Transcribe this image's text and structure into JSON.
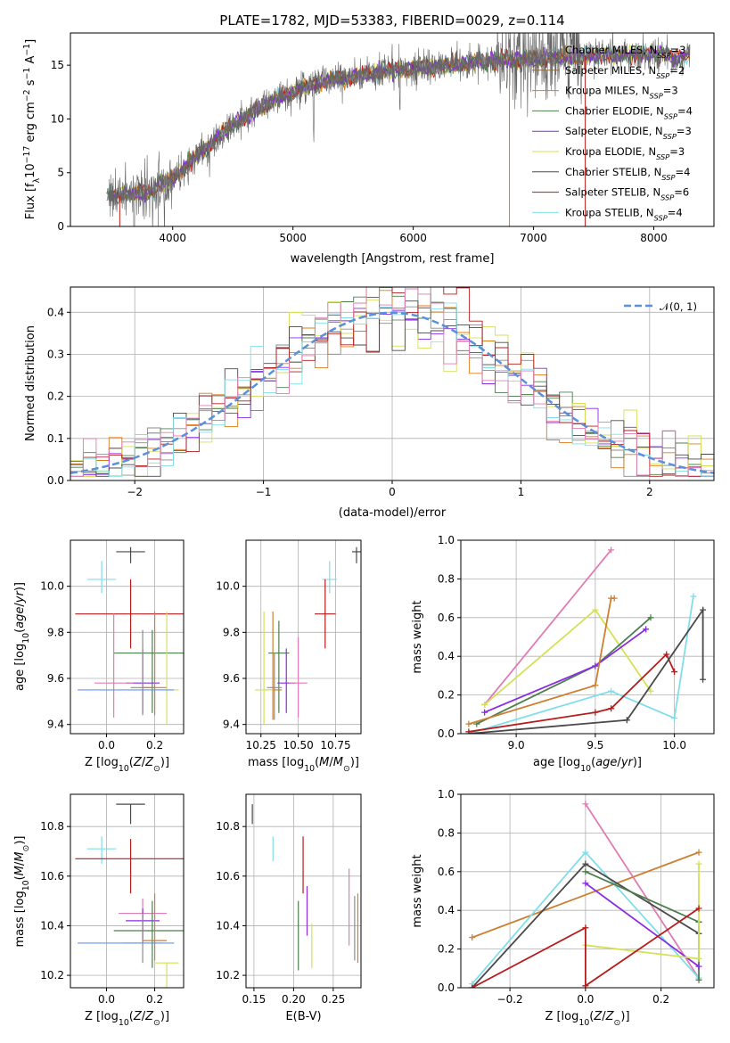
{
  "title": "PLATE=1782, MJD=53383, FIBERID=0029, z=0.114",
  "colors": {
    "chabrier_miles": "#8c8c8c",
    "salpeter_miles": "#8b6a3a",
    "kroupa_miles": "#e07b1a",
    "chabrier_elodie": "#4d7f4d",
    "salpeter_elodie": "#8a2be2",
    "kroupa_elodie": "#d4e157",
    "chabrier_stelib": "#4a4a4a",
    "salpeter_stelib": "#b71c1c",
    "kroupa_stelib": "#80deea",
    "gauss": "#5b8fd9",
    "pink": "#e07cb4",
    "blue": "#6495ed",
    "orange": "#cd7f32"
  },
  "chart_data": [
    {
      "id": "spectrum",
      "type": "line",
      "xlabel": "wavelength [Angstrom, rest frame]",
      "ylabel": "Flux [f",
      "xlim": [
        3150,
        8500
      ],
      "ylim": [
        0,
        18
      ],
      "xticks": [
        "4000",
        "5000",
        "6000",
        "7000",
        "8000"
      ],
      "yticks": [
        "0",
        "5",
        "10",
        "15"
      ],
      "continuum": {
        "x": [
          3500,
          3800,
          4000,
          4300,
          4500,
          4800,
          5000,
          5200,
          5500,
          5800,
          6000,
          6300,
          6600,
          7000,
          7500,
          8000,
          8200
        ],
        "y": [
          2.8,
          3.2,
          4.5,
          7.5,
          9.5,
          11.5,
          12.5,
          13.3,
          14.0,
          14.5,
          14.7,
          15.0,
          15.3,
          15.6,
          15.9,
          16.0,
          15.8
        ]
      },
      "legend": [
        {
          "label": "Chabrier MILES, N",
          "sub": "SSP",
          "rest": "=3",
          "color": "#8c8c8c"
        },
        {
          "label": "Salpeter MILES, N",
          "sub": "SSP",
          "rest": "=2",
          "color": "#8b6a3a"
        },
        {
          "label": "Kroupa MILES, N",
          "sub": "SSP",
          "rest": "=3",
          "color": "#e07b1a"
        },
        {
          "label": "Chabrier ELODIE, N",
          "sub": "SSP",
          "rest": "=4",
          "color": "#4d7f4d"
        },
        {
          "label": "Salpeter ELODIE, N",
          "sub": "SSP",
          "rest": "=3",
          "color": "#8a2be2"
        },
        {
          "label": "Kroupa ELODIE, N",
          "sub": "SSP",
          "rest": "=3",
          "color": "#d4e157"
        },
        {
          "label": "Chabrier STELIB, N",
          "sub": "SSP",
          "rest": "=4",
          "color": "#4a4a4a"
        },
        {
          "label": "Salpeter STELIB, N",
          "sub": "SSP",
          "rest": "=6",
          "color": "#b71c1c"
        },
        {
          "label": "Kroupa STELIB, N",
          "sub": "SSP",
          "rest": "=4",
          "color": "#80deea"
        }
      ]
    },
    {
      "id": "residuals",
      "type": "line",
      "xlabel": "(data-model)/error",
      "ylabel": "Normed distribution",
      "xlim": [
        -2.5,
        2.5
      ],
      "ylim": [
        0,
        0.46
      ],
      "xticks": [
        "−2",
        "−1",
        "0",
        "1",
        "2"
      ],
      "yticks": [
        "0.0",
        "0.1",
        "0.2",
        "0.3",
        "0.4"
      ],
      "legend": "𝒩(0, 1)"
    },
    {
      "id": "age_vs_z",
      "type": "scatter",
      "xlabel": "Z [log",
      "ylabel": "age  [log",
      "xlim": [
        -0.15,
        0.32
      ],
      "ylim": [
        9.36,
        10.2
      ],
      "xticks": [
        "0.0",
        "0.2"
      ],
      "yticks": [
        "9.4",
        "9.6",
        "9.8",
        "10.0"
      ],
      "points": [
        {
          "x": 0.1,
          "y": 10.15,
          "xe": 0.06,
          "yel": 0.05,
          "yeh": 0.02,
          "c": "#4a4a4a"
        },
        {
          "x": -0.02,
          "y": 10.03,
          "xe": 0.06,
          "yel": 0.06,
          "yeh": 0.08,
          "c": "#80deea"
        },
        {
          "x": 0.1,
          "y": 9.88,
          "xe": 0.23,
          "yel": 0.15,
          "yeh": 0.15,
          "c": "#b71c1c"
        },
        {
          "x": 0.19,
          "y": 9.71,
          "xe": 0.16,
          "yel": 0.26,
          "yeh": 0.1,
          "c": "#4d7f4d"
        },
        {
          "x": 0.15,
          "y": 9.58,
          "xe": 0.07,
          "yel": 0.13,
          "yeh": 0.15,
          "c": "#8a2be2"
        },
        {
          "x": 0.03,
          "y": 9.58,
          "xe": 0.08,
          "yel": 0.15,
          "yeh": 0.3,
          "c": "#e07cb4"
        },
        {
          "x": 0.15,
          "y": 9.56,
          "xe": 0.05,
          "yel": 0.12,
          "yeh": 0.25,
          "c": "#8c8c8c"
        },
        {
          "x": 0.2,
          "y": 9.56,
          "xe": 0.05,
          "yel": 0.12,
          "yeh": 0.33,
          "c": "#cd7f32"
        },
        {
          "x": 0.25,
          "y": 9.55,
          "xe": 0.05,
          "yel": 0.15,
          "yeh": 0.34,
          "c": "#d4e157"
        },
        {
          "x": 0.08,
          "y": 9.55,
          "xe": 0.2,
          "yel": 0.0,
          "yeh": 0.0,
          "c": "#6495ed"
        }
      ]
    },
    {
      "id": "age_vs_mass",
      "type": "scatter",
      "xlabel": "mass [log",
      "ylabel": "",
      "xlim": [
        10.15,
        10.92
      ],
      "ylim": [
        9.36,
        10.2
      ],
      "xticks": [
        "10.25",
        "10.50",
        "10.75"
      ],
      "yticks": [
        "9.4",
        "9.6",
        "9.8",
        "10.0"
      ],
      "points": [
        {
          "x": 10.89,
          "y": 10.15,
          "xe": 0.03,
          "yel": 0.05,
          "yeh": 0.02,
          "c": "#4a4a4a"
        },
        {
          "x": 10.71,
          "y": 10.03,
          "xe": 0.05,
          "yel": 0.06,
          "yeh": 0.08,
          "c": "#80deea"
        },
        {
          "x": 10.68,
          "y": 9.88,
          "xe": 0.07,
          "yel": 0.15,
          "yeh": 0.15,
          "c": "#b71c1c"
        },
        {
          "x": 10.37,
          "y": 9.71,
          "xe": 0.07,
          "yel": 0.26,
          "yeh": 0.14,
          "c": "#4d7f4d"
        },
        {
          "x": 10.42,
          "y": 9.58,
          "xe": 0.06,
          "yel": 0.13,
          "yeh": 0.15,
          "c": "#8a2be2"
        },
        {
          "x": 10.5,
          "y": 9.58,
          "xe": 0.06,
          "yel": 0.15,
          "yeh": 0.2,
          "c": "#e07cb4"
        },
        {
          "x": 10.34,
          "y": 9.56,
          "xe": 0.05,
          "yel": 0.14,
          "yeh": 0.15,
          "c": "#8c8c8c"
        },
        {
          "x": 10.33,
          "y": 9.55,
          "xe": 0.06,
          "yel": 0.13,
          "yeh": 0.34,
          "c": "#cd7f32"
        },
        {
          "x": 10.27,
          "y": 9.55,
          "xe": 0.06,
          "yel": 0.15,
          "yeh": 0.34,
          "c": "#d4e157"
        }
      ]
    },
    {
      "id": "weight_vs_age",
      "type": "line",
      "xlabel": "age  [log",
      "ylabel": "mass weight",
      "xlim": [
        8.65,
        10.25
      ],
      "ylim": [
        0,
        1
      ],
      "xticks": [
        "9.0",
        "9.5",
        "10.0"
      ],
      "yticks": [
        "0.0",
        "0.2",
        "0.4",
        "0.6",
        "0.8",
        "1.0"
      ],
      "series": [
        {
          "c": "#e07cb4",
          "x": [
            8.8,
            9.6
          ],
          "y": [
            0.15,
            0.95
          ]
        },
        {
          "c": "#d4e157",
          "x": [
            8.8,
            9.5,
            9.85
          ],
          "y": [
            0.15,
            0.64,
            0.22
          ]
        },
        {
          "c": "#4d7f4d",
          "x": [
            8.75,
            9.5,
            9.85
          ],
          "y": [
            0.05,
            0.35,
            0.6
          ]
        },
        {
          "c": "#8a2be2",
          "x": [
            8.8,
            9.5,
            9.82
          ],
          "y": [
            0.11,
            0.35,
            0.54
          ]
        },
        {
          "c": "#cd7f32",
          "x": [
            8.7,
            9.5,
            9.6,
            9.62
          ],
          "y": [
            0.05,
            0.25,
            0.7,
            0.7
          ]
        },
        {
          "c": "#80deea",
          "x": [
            8.7,
            9.6,
            10.0,
            10.12
          ],
          "y": [
            0.0,
            0.22,
            0.08,
            0.71
          ]
        },
        {
          "c": "#b71c1c",
          "x": [
            8.7,
            9.5,
            9.6,
            9.95,
            10.0
          ],
          "y": [
            0.01,
            0.11,
            0.13,
            0.41,
            0.32
          ]
        },
        {
          "c": "#4a4a4a",
          "x": [
            8.7,
            9.7,
            10.18,
            10.18
          ],
          "y": [
            0.0,
            0.07,
            0.64,
            0.28
          ]
        }
      ]
    },
    {
      "id": "mass_vs_z",
      "type": "scatter",
      "xlabel": "Z [log",
      "ylabel": "mass [log",
      "xlim": [
        -0.15,
        0.32
      ],
      "ylim": [
        10.15,
        10.93
      ],
      "xticks": [
        "0.0",
        "0.2"
      ],
      "yticks": [
        "10.2",
        "10.4",
        "10.6",
        "10.8"
      ],
      "points": [
        {
          "x": 0.1,
          "y": 10.89,
          "xe": 0.06,
          "yel": 0.08,
          "yeh": 0.0,
          "c": "#4a4a4a"
        },
        {
          "x": -0.02,
          "y": 10.71,
          "xe": 0.06,
          "yel": 0.06,
          "yeh": 0.05,
          "c": "#80deea"
        },
        {
          "x": 0.1,
          "y": 10.67,
          "xe": 0.23,
          "yel": 0.14,
          "yeh": 0.08,
          "c": "#b71c1c"
        },
        {
          "x": 0.15,
          "y": 10.45,
          "xe": 0.1,
          "yel": 0.1,
          "yeh": 0.06,
          "c": "#e07cb4"
        },
        {
          "x": 0.15,
          "y": 10.42,
          "xe": 0.07,
          "yel": 0.09,
          "yeh": 0.05,
          "c": "#8a2be2"
        },
        {
          "x": 0.19,
          "y": 10.38,
          "xe": 0.16,
          "yel": 0.15,
          "yeh": 0.12,
          "c": "#4d7f4d"
        },
        {
          "x": 0.2,
          "y": 10.34,
          "xe": 0.05,
          "yel": 0.08,
          "yeh": 0.19,
          "c": "#cd7f32"
        },
        {
          "x": 0.15,
          "y": 10.33,
          "xe": 0.08,
          "yel": 0.08,
          "yeh": 0.12,
          "c": "#8c8c8c"
        },
        {
          "x": 0.08,
          "y": 10.33,
          "xe": 0.2,
          "yel": 0.0,
          "yeh": 0.0,
          "c": "#6495ed"
        },
        {
          "x": 0.25,
          "y": 10.25,
          "xe": 0.05,
          "yel": 0.12,
          "yeh": 0.0,
          "c": "#d4e157"
        }
      ]
    },
    {
      "id": "mass_vs_ebv",
      "type": "scatter",
      "xlabel": "E(B-V)",
      "ylabel": "",
      "xlim": [
        0.14,
        0.285
      ],
      "ylim": [
        10.15,
        10.93
      ],
      "xticks": [
        "0.15",
        "0.20",
        "0.25"
      ],
      "yticks": [
        "10.2",
        "10.4",
        "10.6",
        "10.8"
      ],
      "points": [
        {
          "x": 0.148,
          "y": 10.85,
          "xe": 0,
          "yel": 0.04,
          "yeh": 0.04,
          "c": "#4a4a4a"
        },
        {
          "x": 0.174,
          "y": 10.71,
          "xe": 0,
          "yel": 0.05,
          "yeh": 0.05,
          "c": "#80deea"
        },
        {
          "x": 0.212,
          "y": 10.65,
          "xe": 0,
          "yel": 0.12,
          "yeh": 0.11,
          "c": "#b71c1c"
        },
        {
          "x": 0.217,
          "y": 10.44,
          "xe": 0,
          "yel": 0.08,
          "yeh": 0.12,
          "c": "#8a2be2"
        },
        {
          "x": 0.206,
          "y": 10.37,
          "xe": 0,
          "yel": 0.15,
          "yeh": 0.13,
          "c": "#4d7f4d"
        },
        {
          "x": 0.223,
          "y": 10.33,
          "xe": 0,
          "yel": 0.1,
          "yeh": 0.08,
          "c": "#d4e157"
        },
        {
          "x": 0.27,
          "y": 10.52,
          "xe": 0,
          "yel": 0.2,
          "yeh": 0.11,
          "c": "#e07cb4"
        },
        {
          "x": 0.277,
          "y": 10.39,
          "xe": 0,
          "yel": 0.13,
          "yeh": 0.13,
          "c": "#8c8c8c"
        },
        {
          "x": 0.281,
          "y": 10.39,
          "xe": 0,
          "yel": 0.14,
          "yeh": 0.14,
          "c": "#cd7f32"
        }
      ]
    },
    {
      "id": "weight_vs_z",
      "type": "line",
      "xlabel": "Z [log",
      "ylabel": "mass weight",
      "xlim": [
        -0.33,
        0.34
      ],
      "ylim": [
        0,
        1
      ],
      "xticks": [
        "−0.2",
        "0.0",
        "0.2"
      ],
      "yticks": [
        "0.0",
        "0.2",
        "0.4",
        "0.6",
        "0.8",
        "1.0"
      ],
      "series": [
        {
          "c": "#cd7f32",
          "x": [
            -0.3,
            0.3
          ],
          "y": [
            0.26,
            0.7
          ]
        },
        {
          "c": "#e07cb4",
          "x": [
            0.0,
            0.3
          ],
          "y": [
            0.95,
            0.05
          ]
        },
        {
          "c": "#80deea",
          "x": [
            -0.3,
            0.0,
            0.3
          ],
          "y": [
            0.02,
            0.7,
            0.05
          ]
        },
        {
          "c": "#4a4a4a",
          "x": [
            -0.3,
            0.0,
            0.3,
            0.3
          ],
          "y": [
            0.0,
            0.64,
            0.28,
            0.34
          ]
        },
        {
          "c": "#4d7f4d",
          "x": [
            0.0,
            0.3,
            0.3
          ],
          "y": [
            0.6,
            0.34,
            0.04
          ]
        },
        {
          "c": "#8a2be2",
          "x": [
            0.0,
            0.3
          ],
          "y": [
            0.54,
            0.11
          ]
        },
        {
          "c": "#d4e157",
          "x": [
            0.0,
            0.3,
            0.3
          ],
          "y": [
            0.22,
            0.15,
            0.64
          ]
        },
        {
          "c": "#b71c1c",
          "x": [
            -0.3,
            0.0,
            0.0,
            0.3
          ],
          "y": [
            0.0,
            0.31,
            0.01,
            0.41
          ]
        }
      ]
    }
  ]
}
